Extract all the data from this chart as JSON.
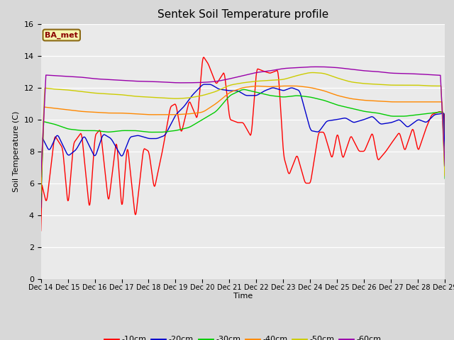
{
  "title": "Sentek Soil Temperature profile",
  "xlabel": "Time",
  "ylabel": "Soil Temperature (C)",
  "ylim": [
    0,
    16
  ],
  "yticks": [
    0,
    2,
    4,
    6,
    8,
    10,
    12,
    14,
    16
  ],
  "x_labels": [
    "Dec 14",
    "Dec 15",
    "Dec 16",
    "Dec 17",
    "Dec 18",
    "Dec 19",
    "Dec 20",
    "Dec 21",
    "Dec 22",
    "Dec 23",
    "Dec 24",
    "Dec 25",
    "Dec 26",
    "Dec 27",
    "Dec 28",
    "Dec 29"
  ],
  "legend_label": "BA_met",
  "legend_box_color": "#f5f5b0",
  "legend_box_edge": "#8b6914",
  "line_colors": {
    "-10cm": "#ff0000",
    "-20cm": "#0000cc",
    "-30cm": "#00cc00",
    "-40cm": "#ff8800",
    "-50cm": "#cccc00",
    "-60cm": "#9900aa"
  },
  "bg_color": "#d8d8d8",
  "plot_bg_color": "#eaeaea",
  "figsize": [
    6.4,
    4.8
  ],
  "dpi": 100
}
